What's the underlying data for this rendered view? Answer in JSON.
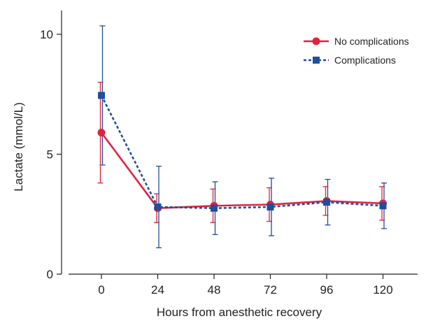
{
  "chart_data": {
    "type": "line",
    "title": "",
    "xlabel": "Hours from anesthetic recovery",
    "ylabel": "Lactate (mmol/L)",
    "categories": [
      "0",
      "24",
      "48",
      "72",
      "96",
      "120"
    ],
    "ylim": [
      0,
      11
    ],
    "yticks": [
      "0",
      "5",
      "10"
    ],
    "grid": false,
    "legend_position": "top-right",
    "series": [
      {
        "name": "No complications",
        "color": "#e0233f",
        "marker": "circle",
        "line_style": "solid",
        "values": [
          5.9,
          2.75,
          2.85,
          2.9,
          3.05,
          2.95
        ],
        "error": [
          2.1,
          0.6,
          0.7,
          0.7,
          0.6,
          0.7
        ]
      },
      {
        "name": "Complications",
        "color": "#1f4e9c",
        "marker": "square",
        "line_style": "dashed",
        "values": [
          7.45,
          2.8,
          2.75,
          2.8,
          3.0,
          2.85
        ],
        "error": [
          2.9,
          1.7,
          1.1,
          1.2,
          0.95,
          0.95
        ]
      }
    ]
  }
}
